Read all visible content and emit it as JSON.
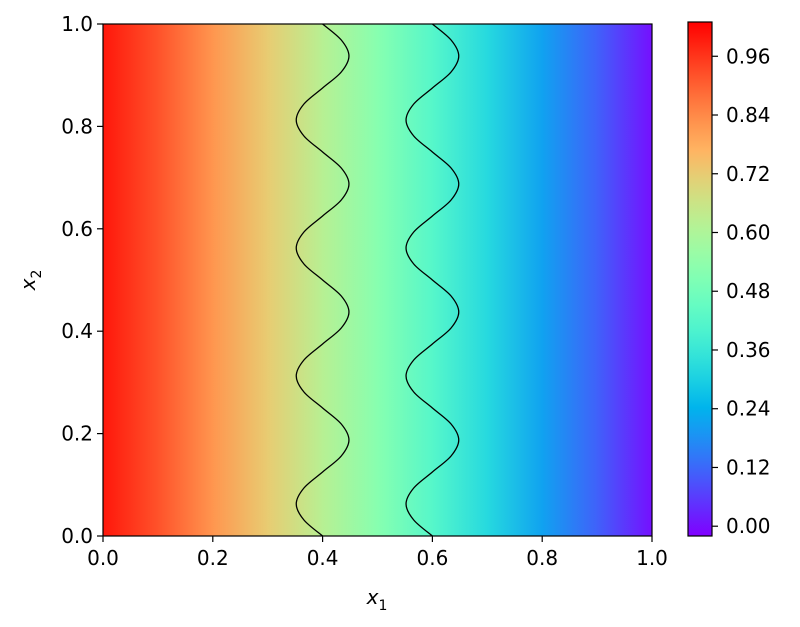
{
  "chart_data": {
    "type": "contour",
    "xlabel": {
      "text": "x",
      "subscript": "1"
    },
    "ylabel": {
      "text": "x",
      "subscript": "2"
    },
    "xlim": [
      0,
      1
    ],
    "ylim": [
      0,
      1
    ],
    "xticks": [
      {
        "value": 0,
        "label": "0.0"
      },
      0.2,
      0.4,
      0.6,
      0.8,
      {
        "value": 1,
        "label": "1.0"
      }
    ],
    "yticks": [
      {
        "value": 0,
        "label": "0.0"
      },
      0.2,
      0.4,
      0.6,
      0.8,
      {
        "value": 1,
        "label": "1.0"
      }
    ],
    "colormap": "rainbow",
    "clim": [
      -0.02,
      1.03
    ],
    "cticks": [
      {
        "value": 0,
        "label": "0.00"
      },
      0.12,
      0.24,
      0.36,
      0.48,
      {
        "value": 0.6,
        "label": "0.60"
      },
      0.72,
      0.84,
      0.96
    ],
    "field": {
      "x": [
        0,
        0.1,
        0.2,
        0.3,
        0.4,
        0.5,
        0.6,
        0.7,
        0.8,
        0.9,
        1
      ],
      "z": [
        1.0,
        0.92,
        0.82,
        0.72,
        0.62,
        0.52,
        0.42,
        0.32,
        0.21,
        0.11,
        0.0
      ]
    },
    "curves": [
      {
        "color": "#000000",
        "y": [
          0,
          0.03125,
          0.0625,
          0.09375,
          0.125,
          0.15625,
          0.1875,
          0.21875,
          0.25,
          0.28125,
          0.3125,
          0.34375,
          0.375,
          0.40625,
          0.4375,
          0.46875,
          0.5,
          0.53125,
          0.5625,
          0.59375,
          0.625,
          0.65625,
          0.6875,
          0.71875,
          0.75,
          0.78125,
          0.8125,
          0.84375,
          0.875,
          0.90625,
          0.9375,
          0.96875,
          1
        ],
        "x": [
          0.4,
          0.366,
          0.352,
          0.366,
          0.4,
          0.434,
          0.448,
          0.434,
          0.4,
          0.366,
          0.352,
          0.366,
          0.4,
          0.434,
          0.448,
          0.434,
          0.4,
          0.366,
          0.352,
          0.366,
          0.4,
          0.434,
          0.448,
          0.434,
          0.4,
          0.366,
          0.352,
          0.366,
          0.4,
          0.434,
          0.448,
          0.434,
          0.4
        ]
      },
      {
        "color": "#000000",
        "y": [
          0,
          0.03125,
          0.0625,
          0.09375,
          0.125,
          0.15625,
          0.1875,
          0.21875,
          0.25,
          0.28125,
          0.3125,
          0.34375,
          0.375,
          0.40625,
          0.4375,
          0.46875,
          0.5,
          0.53125,
          0.5625,
          0.59375,
          0.625,
          0.65625,
          0.6875,
          0.71875,
          0.75,
          0.78125,
          0.8125,
          0.84375,
          0.875,
          0.90625,
          0.9375,
          0.96875,
          1
        ],
        "x": [
          0.6,
          0.566,
          0.552,
          0.566,
          0.6,
          0.634,
          0.648,
          0.634,
          0.6,
          0.566,
          0.552,
          0.566,
          0.6,
          0.634,
          0.648,
          0.634,
          0.6,
          0.566,
          0.552,
          0.566,
          0.6,
          0.634,
          0.648,
          0.634,
          0.6,
          0.566,
          0.552,
          0.566,
          0.6,
          0.634,
          0.648,
          0.634,
          0.6
        ]
      }
    ]
  }
}
